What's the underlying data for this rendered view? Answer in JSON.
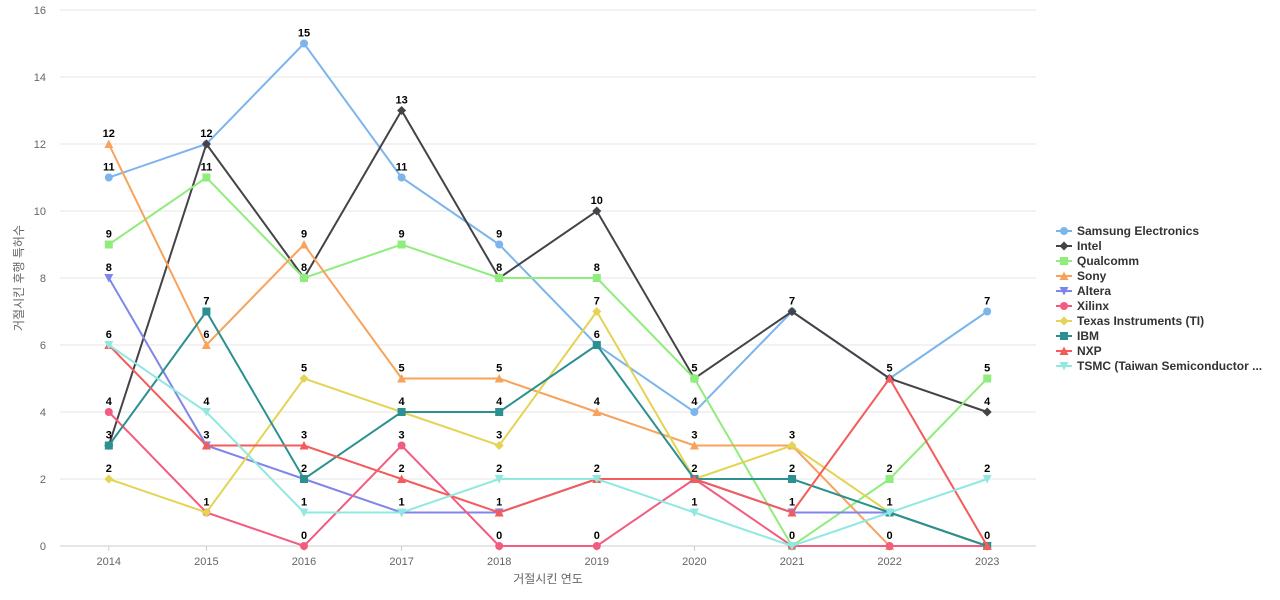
{
  "chart_data": {
    "type": "line",
    "title": "",
    "xlabel": "거절시킨 연도",
    "ylabel": "거절시킨 후행 특허수",
    "x": [
      2014,
      2015,
      2016,
      2017,
      2018,
      2019,
      2020,
      2021,
      2022,
      2023
    ],
    "ylim": [
      0,
      16
    ],
    "yticks": [
      0,
      2,
      4,
      6,
      8,
      10,
      12,
      14,
      16
    ],
    "grid": true,
    "legend_position": "right",
    "series": [
      {
        "name": "Samsung Electronics",
        "color": "#7cb5ec",
        "marker": "circle",
        "values": [
          11,
          12,
          15,
          11,
          9,
          6,
          4,
          7,
          5,
          7
        ]
      },
      {
        "name": "Intel",
        "color": "#434348",
        "marker": "diamond",
        "values": [
          3,
          12,
          8,
          13,
          8,
          10,
          5,
          7,
          5,
          4
        ]
      },
      {
        "name": "Qualcomm",
        "color": "#90ed7d",
        "marker": "square",
        "values": [
          9,
          11,
          8,
          9,
          8,
          8,
          5,
          0,
          2,
          5
        ]
      },
      {
        "name": "Sony",
        "color": "#f7a35c",
        "marker": "triangle",
        "values": [
          12,
          6,
          9,
          5,
          5,
          4,
          3,
          3,
          0,
          0
        ]
      },
      {
        "name": "Altera",
        "color": "#8085e9",
        "marker": "triangle-down",
        "values": [
          8,
          3,
          2,
          1,
          1,
          2,
          2,
          1,
          1,
          0
        ]
      },
      {
        "name": "Xilinx",
        "color": "#f15c80",
        "marker": "circle",
        "values": [
          4,
          1,
          0,
          3,
          0,
          0,
          2,
          0,
          0,
          0
        ]
      },
      {
        "name": "Texas Instruments (TI)",
        "color": "#e4d354",
        "marker": "diamond",
        "values": [
          2,
          1,
          5,
          4,
          3,
          7,
          2,
          3,
          1,
          0
        ]
      },
      {
        "name": "IBM",
        "color": "#2b908f",
        "marker": "square",
        "values": [
          3,
          7,
          2,
          4,
          4,
          6,
          2,
          2,
          1,
          0
        ]
      },
      {
        "name": "NXP",
        "color": "#f45b5b",
        "marker": "triangle",
        "values": [
          6,
          3,
          3,
          2,
          1,
          2,
          2,
          1,
          5,
          0
        ]
      },
      {
        "name": "TSMC (Taiwan Semiconductor ...",
        "color": "#91e8e1",
        "marker": "triangle-down",
        "values": [
          6,
          4,
          1,
          1,
          2,
          2,
          1,
          0,
          1,
          2
        ]
      }
    ],
    "data_labels": [
      {
        "series": "Samsung Electronics",
        "x": 2014,
        "text": "11"
      },
      {
        "series": "Sony",
        "x": 2014,
        "text": "12"
      },
      {
        "series": "Qualcomm",
        "x": 2014,
        "text": "9"
      },
      {
        "series": "Altera",
        "x": 2014,
        "text": "8"
      },
      {
        "series": "NXP",
        "x": 2014,
        "text": "6"
      },
      {
        "series": "Xilinx",
        "x": 2014,
        "text": "4"
      },
      {
        "series": "Intel",
        "x": 2014,
        "text": "3"
      },
      {
        "series": "Texas Instruments (TI)",
        "x": 2014,
        "text": "2"
      },
      {
        "series": "Samsung Electronics",
        "x": 2015,
        "text": "12"
      },
      {
        "series": "Qualcomm",
        "x": 2015,
        "text": "11"
      },
      {
        "series": "IBM",
        "x": 2015,
        "text": "7"
      },
      {
        "series": "Sony",
        "x": 2015,
        "text": "6"
      },
      {
        "series": "TSMC (Taiwan Semiconductor ...",
        "x": 2015,
        "text": "4"
      },
      {
        "series": "Altera",
        "x": 2015,
        "text": "3"
      },
      {
        "series": "Texas Instruments (TI)",
        "x": 2015,
        "text": "1"
      },
      {
        "series": "Samsung Electronics",
        "x": 2016,
        "text": "15"
      },
      {
        "series": "Sony",
        "x": 2016,
        "text": "9"
      },
      {
        "series": "Qualcomm",
        "x": 2016,
        "text": "8"
      },
      {
        "series": "Texas Instruments (TI)",
        "x": 2016,
        "text": "5"
      },
      {
        "series": "NXP",
        "x": 2016,
        "text": "3"
      },
      {
        "series": "IBM",
        "x": 2016,
        "text": "2"
      },
      {
        "series": "TSMC (Taiwan Semiconductor ...",
        "x": 2016,
        "text": "1"
      },
      {
        "series": "Xilinx",
        "x": 2016,
        "text": "0"
      },
      {
        "series": "Intel",
        "x": 2017,
        "text": "13"
      },
      {
        "series": "Samsung Electronics",
        "x": 2017,
        "text": "11"
      },
      {
        "series": "Qualcomm",
        "x": 2017,
        "text": "9"
      },
      {
        "series": "Sony",
        "x": 2017,
        "text": "5"
      },
      {
        "series": "IBM",
        "x": 2017,
        "text": "4"
      },
      {
        "series": "Xilinx",
        "x": 2017,
        "text": "3"
      },
      {
        "series": "NXP",
        "x": 2017,
        "text": "2"
      },
      {
        "series": "TSMC (Taiwan Semiconductor ...",
        "x": 2017,
        "text": "1"
      },
      {
        "series": "Samsung Electronics",
        "x": 2018,
        "text": "9"
      },
      {
        "series": "Qualcomm",
        "x": 2018,
        "text": "8"
      },
      {
        "series": "Sony",
        "x": 2018,
        "text": "5"
      },
      {
        "series": "IBM",
        "x": 2018,
        "text": "4"
      },
      {
        "series": "Texas Instruments (TI)",
        "x": 2018,
        "text": "3"
      },
      {
        "series": "TSMC (Taiwan Semiconductor ...",
        "x": 2018,
        "text": "2"
      },
      {
        "series": "NXP",
        "x": 2018,
        "text": "1"
      },
      {
        "series": "Xilinx",
        "x": 2018,
        "text": "0"
      },
      {
        "series": "Intel",
        "x": 2019,
        "text": "10"
      },
      {
        "series": "Qualcomm",
        "x": 2019,
        "text": "8"
      },
      {
        "series": "Texas Instruments (TI)",
        "x": 2019,
        "text": "7"
      },
      {
        "series": "IBM",
        "x": 2019,
        "text": "6"
      },
      {
        "series": "Sony",
        "x": 2019,
        "text": "4"
      },
      {
        "series": "NXP",
        "x": 2019,
        "text": "2"
      },
      {
        "series": "Xilinx",
        "x": 2019,
        "text": "0"
      },
      {
        "series": "Intel",
        "x": 2020,
        "text": "5"
      },
      {
        "series": "Samsung Electronics",
        "x": 2020,
        "text": "4"
      },
      {
        "series": "Sony",
        "x": 2020,
        "text": "3"
      },
      {
        "series": "IBM",
        "x": 2020,
        "text": "2"
      },
      {
        "series": "TSMC (Taiwan Semiconductor ...",
        "x": 2020,
        "text": "1"
      },
      {
        "series": "Intel",
        "x": 2021,
        "text": "7"
      },
      {
        "series": "Texas Instruments (TI)",
        "x": 2021,
        "text": "3"
      },
      {
        "series": "IBM",
        "x": 2021,
        "text": "2"
      },
      {
        "series": "NXP",
        "x": 2021,
        "text": "1"
      },
      {
        "series": "Qualcomm",
        "x": 2021,
        "text": "0"
      },
      {
        "series": "Intel",
        "x": 2022,
        "text": "5"
      },
      {
        "series": "Qualcomm",
        "x": 2022,
        "text": "2"
      },
      {
        "series": "TSMC (Taiwan Semiconductor ...",
        "x": 2022,
        "text": "1"
      },
      {
        "series": "Sony",
        "x": 2022,
        "text": "0"
      },
      {
        "series": "Samsung Electronics",
        "x": 2023,
        "text": "7"
      },
      {
        "series": "Qualcomm",
        "x": 2023,
        "text": "5"
      },
      {
        "series": "Intel",
        "x": 2023,
        "text": "4"
      },
      {
        "series": "TSMC (Taiwan Semiconductor ...",
        "x": 2023,
        "text": "2"
      },
      {
        "series": "IBM",
        "x": 2023,
        "text": "0"
      }
    ]
  }
}
